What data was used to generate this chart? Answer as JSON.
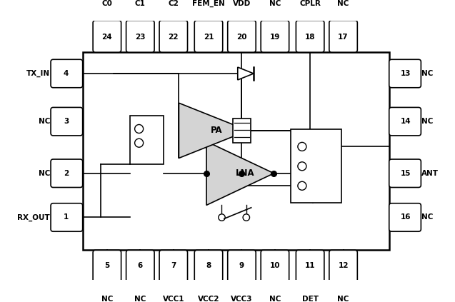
{
  "bg_color": "#ffffff",
  "top_pins": [
    {
      "num": 24,
      "label": "C0",
      "xf": 0.185
    },
    {
      "num": 23,
      "label": "C1",
      "xf": 0.27
    },
    {
      "num": 22,
      "label": "C2",
      "xf": 0.355
    },
    {
      "num": 21,
      "label": "FEM_EN",
      "xf": 0.445
    },
    {
      "num": 20,
      "label": "VDD",
      "xf": 0.53
    },
    {
      "num": 19,
      "label": "NC",
      "xf": 0.615
    },
    {
      "num": 18,
      "label": "CPLR",
      "xf": 0.705
    },
    {
      "num": 17,
      "label": "NC",
      "xf": 0.79
    }
  ],
  "bottom_pins": [
    {
      "num": 5,
      "label": "NC",
      "xf": 0.185
    },
    {
      "num": 6,
      "label": "NC",
      "xf": 0.27
    },
    {
      "num": 7,
      "label": "VCC1",
      "xf": 0.355
    },
    {
      "num": 8,
      "label": "VCC2",
      "xf": 0.445
    },
    {
      "num": 9,
      "label": "VCC3",
      "xf": 0.53
    },
    {
      "num": 10,
      "label": "NC",
      "xf": 0.615
    },
    {
      "num": 11,
      "label": "DET",
      "xf": 0.705
    },
    {
      "num": 12,
      "label": "NC",
      "xf": 0.79
    }
  ],
  "left_pins": [
    {
      "num": 1,
      "label": "RX_OUT",
      "yf": 0.76
    },
    {
      "num": 2,
      "label": "NC",
      "yf": 0.59
    },
    {
      "num": 3,
      "label": "NC",
      "yf": 0.39
    },
    {
      "num": 4,
      "label": "TX_IN",
      "yf": 0.205
    }
  ],
  "right_pins": [
    {
      "num": 16,
      "label": "NC",
      "yf": 0.76
    },
    {
      "num": 15,
      "label": "ANT",
      "yf": 0.59
    },
    {
      "num": 14,
      "label": "NC",
      "yf": 0.39
    },
    {
      "num": 13,
      "label": "NC",
      "yf": 0.205
    }
  ],
  "lna_fill": "#d4d4d4",
  "pa_fill": "#d4d4d4"
}
